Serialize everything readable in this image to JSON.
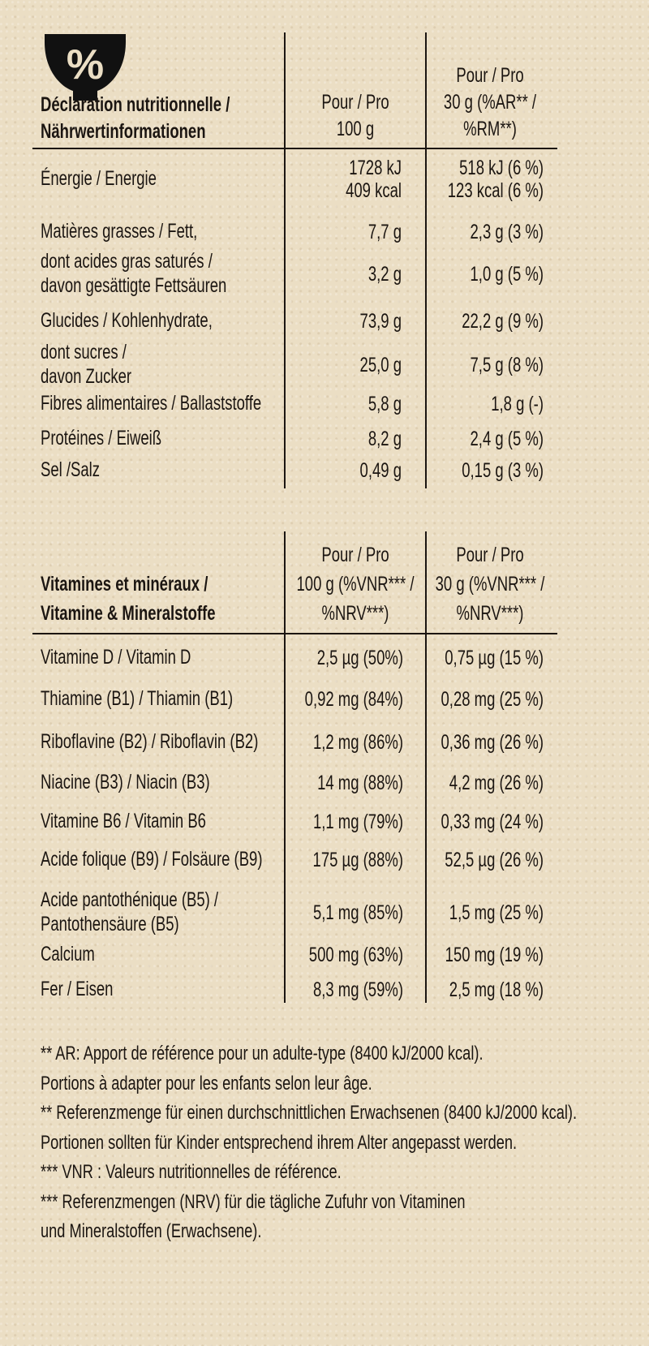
{
  "icon": "bowl-percent-icon",
  "nutrition": {
    "header": {
      "label": [
        "Déclaration nutritionnelle /",
        "Nährwertinformationen"
      ],
      "col1": [
        "Pour / Pro",
        "100 g"
      ],
      "col2": [
        "Pour / Pro",
        "30 g (%AR** /",
        "%RM**)"
      ]
    },
    "rows": [
      {
        "label": [
          "Énergie / Energie"
        ],
        "per100": [
          "1728 kJ",
          "409 kcal"
        ],
        "per30": [
          "518 kJ (6 %)",
          "123 kcal (6 %)"
        ]
      },
      {
        "label": [
          "Matières grasses / Fett,"
        ],
        "per100": [
          "7,7 g"
        ],
        "per30": [
          "2,3 g (3 %)"
        ]
      },
      {
        "label": [
          "dont acides gras saturés /",
          "davon gesättigte Fettsäuren"
        ],
        "per100": [
          "3,2 g"
        ],
        "per30": [
          "1,0 g (5 %)"
        ]
      },
      {
        "label": [
          "Glucides / Kohlenhydrate,"
        ],
        "per100": [
          "73,9 g"
        ],
        "per30": [
          "22,2 g (9 %)"
        ]
      },
      {
        "label": [
          "dont sucres /",
          "davon Zucker"
        ],
        "per100": [
          "25,0 g"
        ],
        "per30": [
          "7,5 g (8 %)"
        ]
      },
      {
        "label": [
          "Fibres alimentaires / Ballaststoffe"
        ],
        "per100": [
          "5,8 g"
        ],
        "per30": [
          "1,8 g (-)"
        ]
      },
      {
        "label": [
          "Protéines / Eiweiß"
        ],
        "per100": [
          "8,2 g"
        ],
        "per30": [
          "2,4 g (5 %)"
        ]
      },
      {
        "label": [
          "Sel /Salz"
        ],
        "per100": [
          "0,49 g"
        ],
        "per30": [
          "0,15 g (3 %)"
        ]
      }
    ]
  },
  "vitamins": {
    "header": {
      "label": [
        "Vitamines et minéraux /",
        "Vitamine & Mineralstoffe"
      ],
      "col1": [
        "Pour / Pro",
        "100 g (%VNR*** /",
        "%NRV***)"
      ],
      "col2": [
        "Pour / Pro",
        "30 g (%VNR*** /",
        "%NRV***)"
      ]
    },
    "rows": [
      {
        "label": [
          "Vitamine D / Vitamin D"
        ],
        "per100": [
          "2,5 µg (50%)"
        ],
        "per30": [
          "0,75 µg (15 %)"
        ]
      },
      {
        "label": [
          "Thiamine (B1) / Thiamin (B1)"
        ],
        "per100": [
          "0,92 mg (84%)"
        ],
        "per30": [
          "0,28 mg (25 %)"
        ]
      },
      {
        "label": [
          "Riboflavine (B2) / Riboflavin (B2)"
        ],
        "per100": [
          "1,2 mg (86%)"
        ],
        "per30": [
          "0,36 mg (26 %)"
        ]
      },
      {
        "label": [
          "Niacine (B3) / Niacin (B3)"
        ],
        "per100": [
          "14 mg (88%)"
        ],
        "per30": [
          "4,2 mg (26 %)"
        ]
      },
      {
        "label": [
          "Vitamine B6 / Vitamin B6"
        ],
        "per100": [
          "1,1 mg (79%)"
        ],
        "per30": [
          "0,33 mg (24 %)"
        ]
      },
      {
        "label": [
          "Acide folique (B9) / Folsäure (B9)"
        ],
        "per100": [
          "175 µg (88%)"
        ],
        "per30": [
          "52,5 µg (26 %)"
        ]
      },
      {
        "label": [
          "Acide pantothénique (B5) /",
          "Pantothensäure (B5)"
        ],
        "per100": [
          "5,1 mg (85%)"
        ],
        "per30": [
          "1,5 mg (25 %)"
        ]
      },
      {
        "label": [
          "Calcium"
        ],
        "per100": [
          "500 mg (63%)"
        ],
        "per30": [
          "150 mg (19 %)"
        ]
      },
      {
        "label": [
          "Fer / Eisen"
        ],
        "per100": [
          "8,3 mg (59%)"
        ],
        "per30": [
          "2,5 mg (18 %)"
        ]
      }
    ]
  },
  "footnotes": [
    "** AR: Apport de référence pour un adulte-type (8400 kJ/2000 kcal).",
    "Portions à adapter pour les enfants selon leur âge.",
    "** Referenzmenge für einen durchschnittlichen Erwachsenen (8400 kJ/2000 kcal).",
    "Portionen sollten für Kinder entsprechend ihrem Alter angepasst werden.",
    "*** VNR : Valeurs nutritionnelles de référence.",
    "*** Referenzmengen (NRV) für die tägliche Zufuhr von Vitaminen",
    "und Mineralstoffen (Erwachsene)."
  ]
}
